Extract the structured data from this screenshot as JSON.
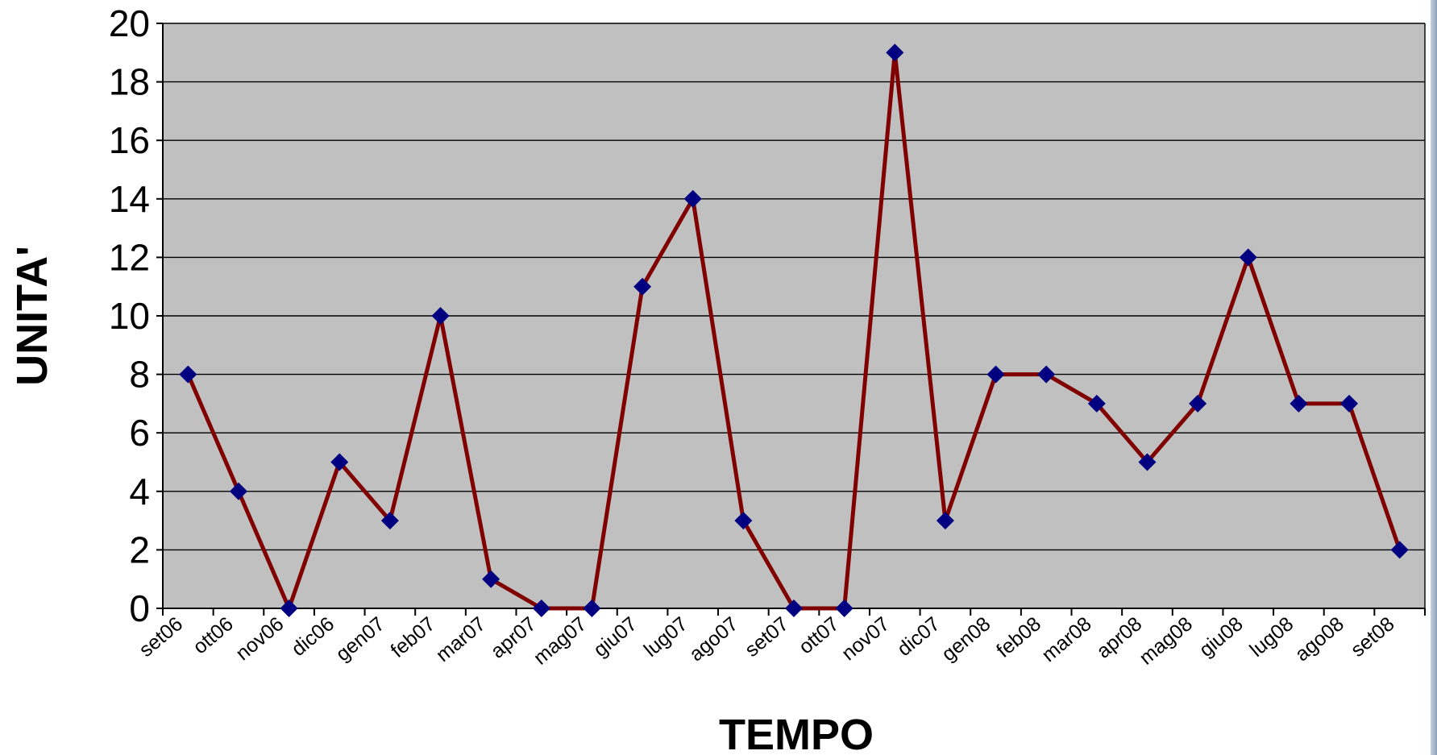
{
  "chart_data": {
    "type": "line",
    "title": "",
    "xlabel": "TEMPO",
    "ylabel": "UNITA'",
    "categories": [
      "set06",
      "ott06",
      "nov06",
      "dic06",
      "gen07",
      "feb07",
      "mar07",
      "apr07",
      "mag07",
      "giu07",
      "lug07",
      "ago07",
      "set07",
      "ott07",
      "nov07",
      "dic07",
      "gen08",
      "feb08",
      "mar08",
      "apr08",
      "mag08",
      "giu08",
      "lug08",
      "ago08",
      "set08"
    ],
    "series": [
      {
        "values": [
          8,
          4,
          0,
          5,
          3,
          10,
          1,
          0,
          0,
          11,
          14,
          3,
          0,
          0,
          19,
          3,
          8,
          8,
          7,
          5,
          7,
          12,
          7,
          7,
          2
        ]
      }
    ],
    "ylim": [
      0,
      20
    ],
    "yticks": [
      0,
      2,
      4,
      6,
      8,
      10,
      12,
      14,
      16,
      18,
      20
    ],
    "grid": true,
    "legend": "none",
    "colors": {
      "plot_background": "#c0c0c0",
      "gridline": "#000000",
      "line": "#800000",
      "marker": "#000080"
    }
  }
}
